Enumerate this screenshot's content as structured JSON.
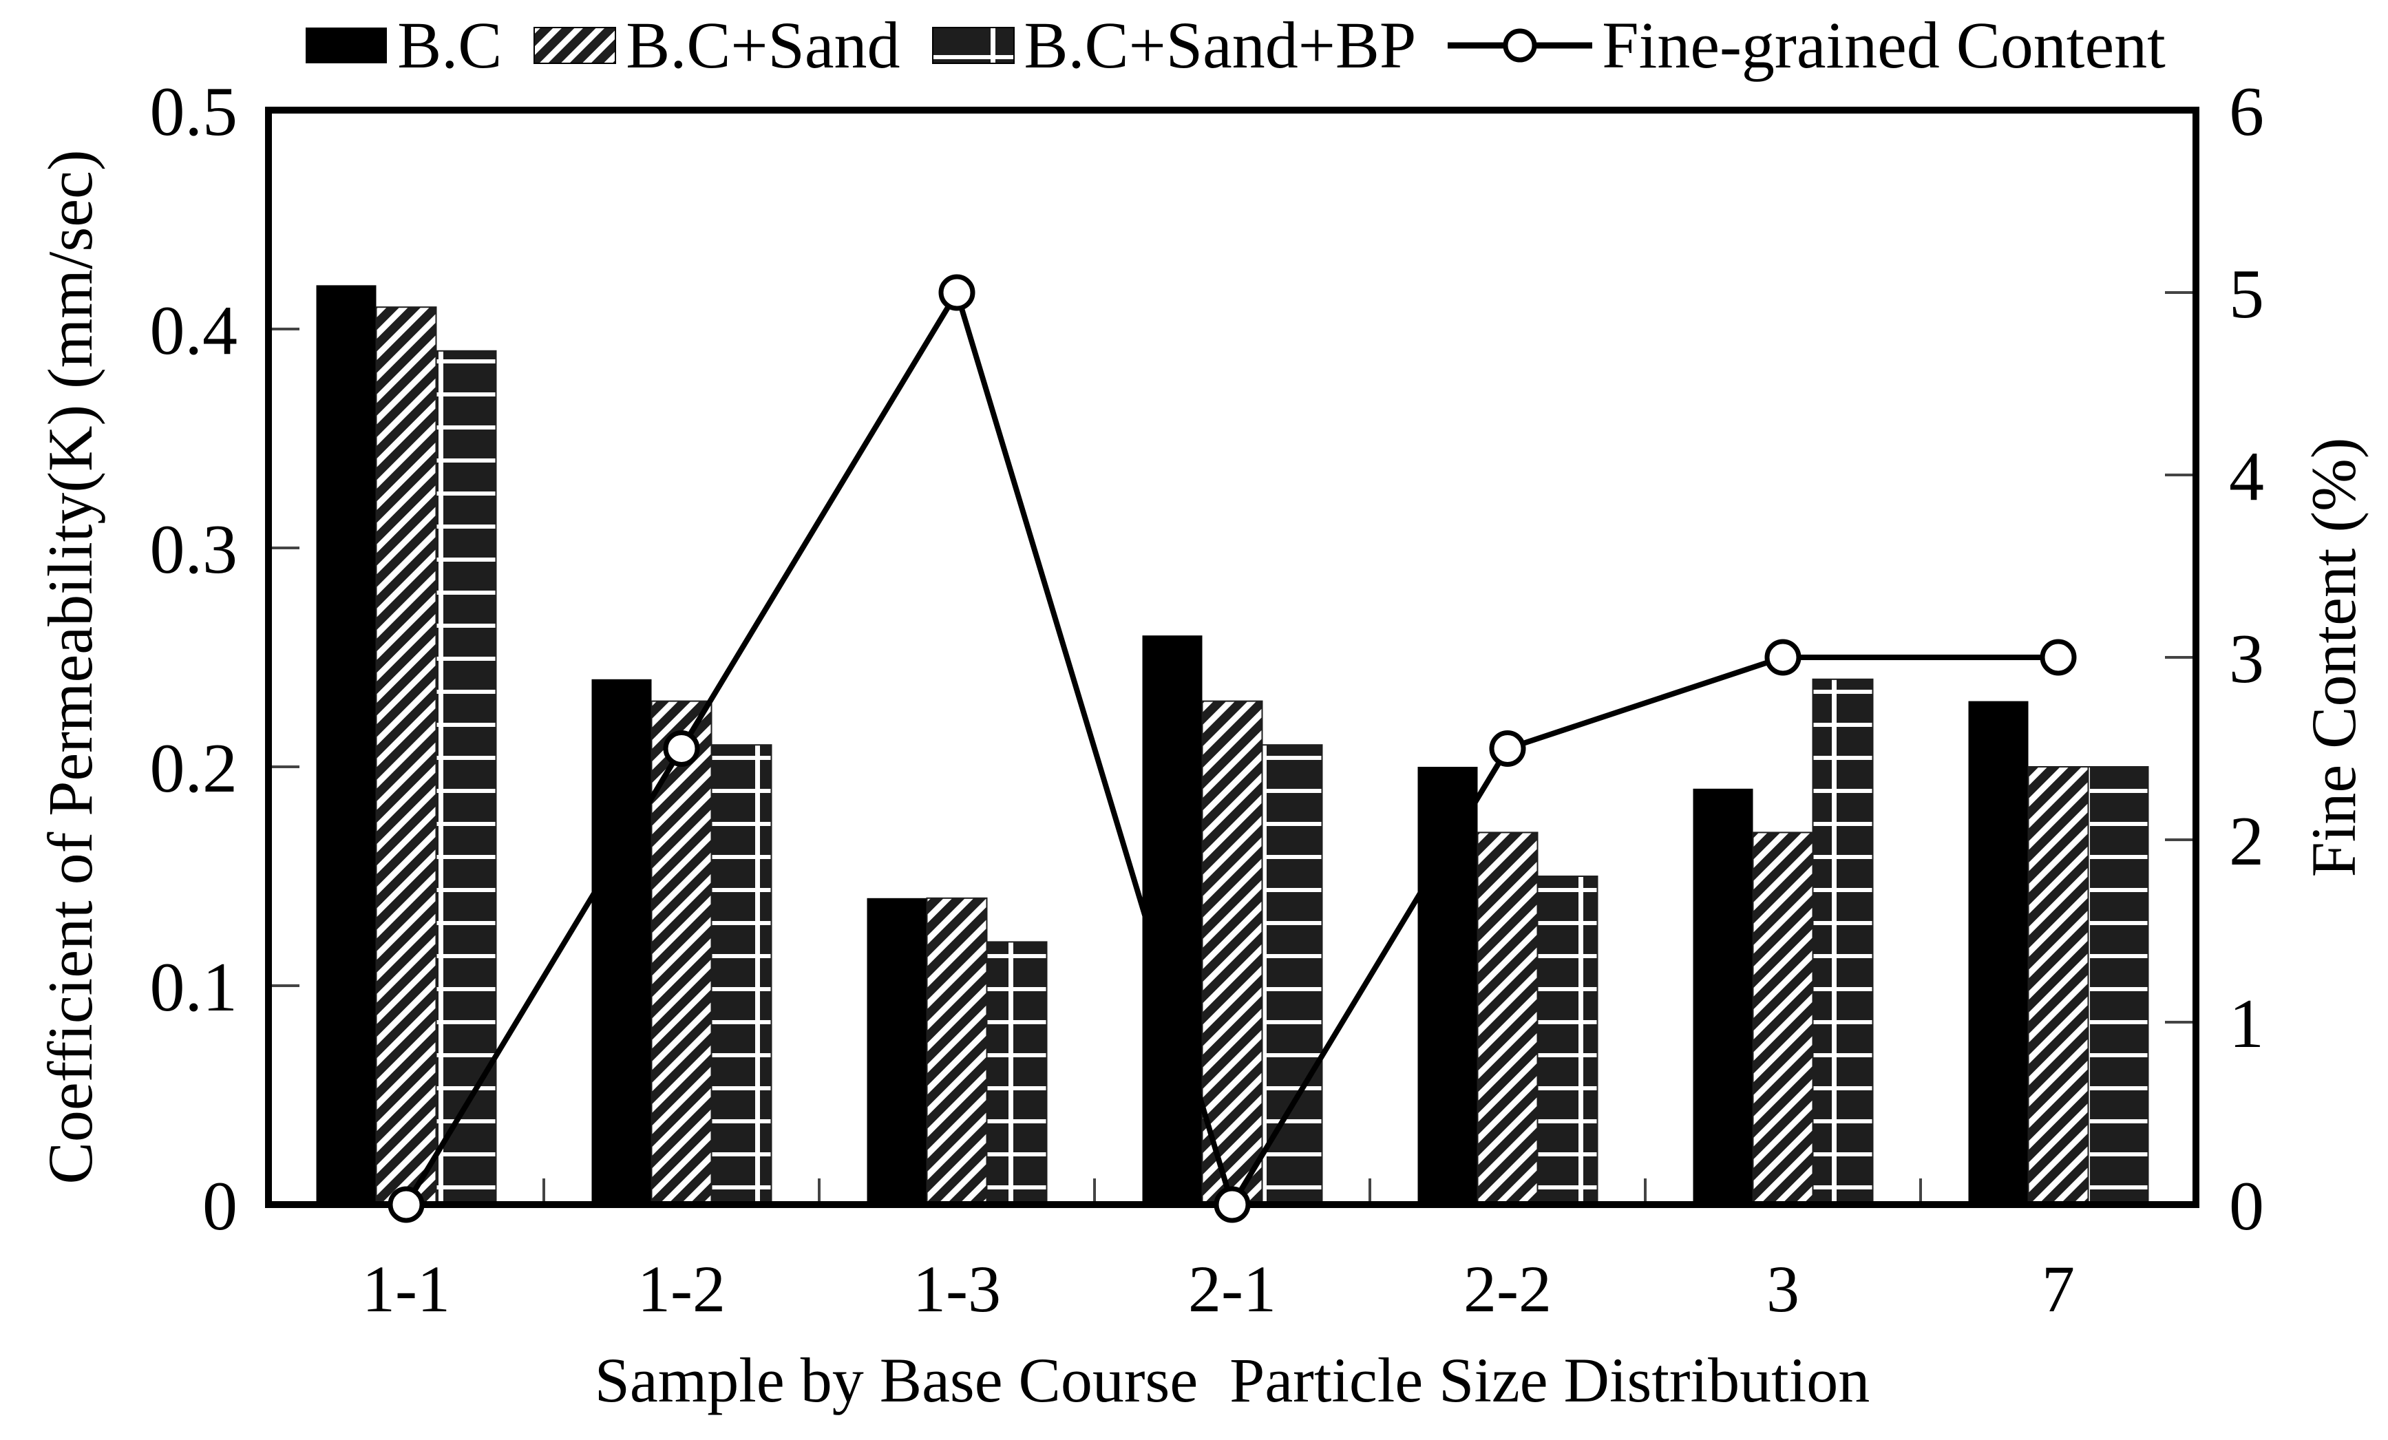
{
  "figure": {
    "background": "#ffffff",
    "ink_color": "#000000",
    "pattern_dark": "#1e1e1e",
    "pattern_light": "#ffffff"
  },
  "legend": {
    "items": [
      {
        "label": "B.C",
        "swatch": "solid-black"
      },
      {
        "label": "B.C+Sand",
        "swatch": "diagonal-stripes"
      },
      {
        "label": "B.C+Sand+BP",
        "swatch": "brick-grid"
      },
      {
        "label": "Fine-grained Content",
        "swatch": "line-open-circle"
      }
    ]
  },
  "chart_data": {
    "type": "bar",
    "categories": [
      "1-1",
      "1-2",
      "1-3",
      "2-1",
      "2-2",
      "3",
      "7"
    ],
    "series": [
      {
        "name": "B.C",
        "type": "bar",
        "axis": "left",
        "pattern": "solid-black",
        "values": [
          0.42,
          0.24,
          0.14,
          0.26,
          0.2,
          0.19,
          0.23
        ]
      },
      {
        "name": "B.C+Sand",
        "type": "bar",
        "axis": "left",
        "pattern": "diagonal-stripes",
        "values": [
          0.41,
          0.23,
          0.14,
          0.23,
          0.17,
          0.17,
          0.2
        ]
      },
      {
        "name": "B.C+Sand+BP",
        "type": "bar",
        "axis": "left",
        "pattern": "brick-grid",
        "values": [
          0.39,
          0.21,
          0.12,
          0.21,
          0.15,
          0.24,
          0.2
        ]
      },
      {
        "name": "Fine-grained Content",
        "type": "line",
        "axis": "right",
        "marker": "open-circle",
        "values": [
          0,
          2.5,
          5,
          0,
          2.5,
          3,
          3
        ]
      }
    ],
    "title": "",
    "xlabel": "Sample by Base Course  Particle Size Distribution",
    "ylabel_left": "Coefficient of Permeability(K) (mm/sec)",
    "ylabel_right": "Fine Content (%)",
    "ylim_left": [
      0,
      0.5
    ],
    "ylim_right": [
      0,
      6
    ],
    "yticks_left": [
      "0.5",
      "0.4",
      "0.3",
      "0.2",
      "0.1",
      "0"
    ],
    "yticks_right": [
      "6",
      "5",
      "4",
      "3",
      "2",
      "1",
      "0"
    ],
    "grid": false,
    "legend_position": "top"
  }
}
